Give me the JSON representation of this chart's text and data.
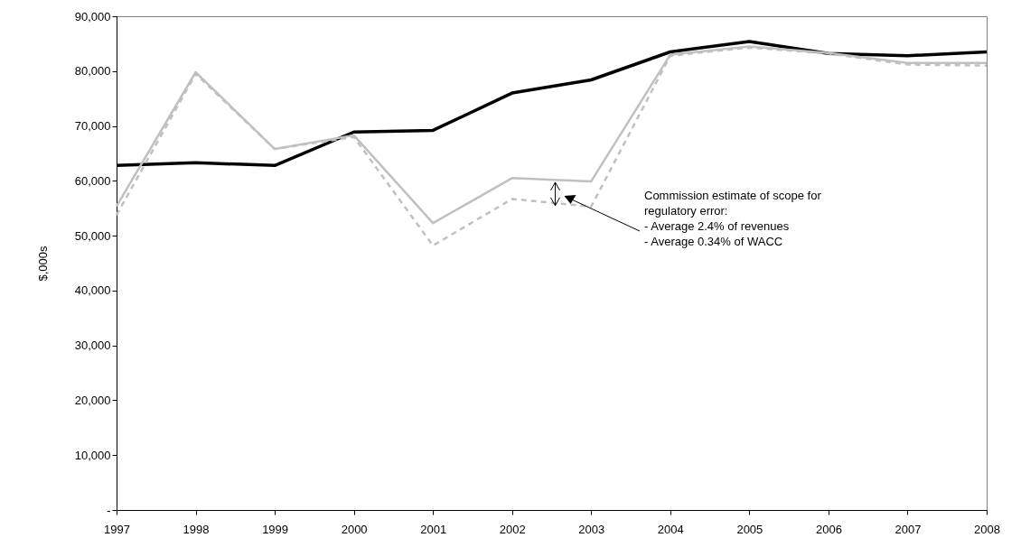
{
  "chart_data": {
    "type": "line",
    "ylabel": "$,000s",
    "categories": [
      "1997",
      "1998",
      "1999",
      "2000",
      "2001",
      "2002",
      "2003",
      "2004",
      "2005",
      "2006",
      "2007",
      "2008"
    ],
    "series": [
      {
        "color": "#000000",
        "values": [
          62800,
          63300,
          62800,
          68900,
          69200,
          76000,
          78400,
          83500,
          85400,
          83200,
          82800,
          83500
        ]
      },
      {
        "color": "#c0c0c0",
        "values": [
          55400,
          79800,
          65800,
          68300,
          52300,
          60500,
          59900,
          83000,
          84500,
          83300,
          81500,
          81500
        ]
      },
      {
        "color": "#c0c0c0",
        "line_style": "dashed",
        "values": [
          53800,
          79500,
          65800,
          68000,
          48200,
          56700,
          55300,
          82800,
          84300,
          83200,
          81200,
          81000
        ]
      }
    ],
    "ylim": [
      0,
      90000
    ],
    "yticks": [
      {
        "value": 0,
        "label": "-"
      },
      {
        "value": 10000,
        "label": "10,000"
      },
      {
        "value": 20000,
        "label": "20,000"
      },
      {
        "value": 30000,
        "label": "30,000"
      },
      {
        "value": 40000,
        "label": "40,000"
      },
      {
        "value": 50000,
        "label": "50,000"
      },
      {
        "value": 60000,
        "label": "60,000"
      },
      {
        "value": 70000,
        "label": "70,000"
      },
      {
        "value": 80000,
        "label": "80,000"
      },
      {
        "value": 90000,
        "label": "90,000"
      }
    ],
    "grid": false,
    "marker": "none",
    "annotations": [
      "Commission estimate of scope for\nregulatory error:\n- Average 2.4% of revenues\n- Average 0.34% of WACC"
    ]
  }
}
